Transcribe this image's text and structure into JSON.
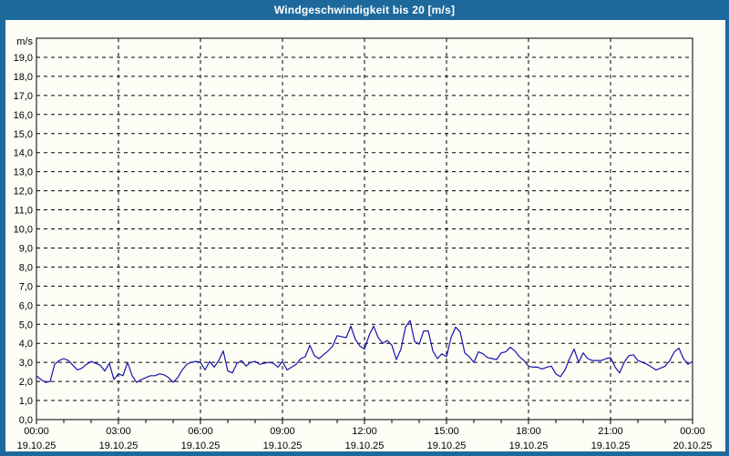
{
  "window": {
    "title": "Windgeschwindigkeit bis 20 [m/s]",
    "titlebar_color": "#1E699C",
    "background_color": "#FDFDF6"
  },
  "chart_data": {
    "type": "line",
    "title": "Windgeschwindigkeit bis 20 [m/s]",
    "ylabel": "m/s",
    "ylim": [
      0,
      20
    ],
    "ytick_min": 0,
    "ytick_max": 19,
    "ytick_step": 1,
    "decimal_separator": ",",
    "grid": {
      "style": "dashed",
      "color": "#000000",
      "horizontal_every": 1,
      "vertical_every_hours": 3
    },
    "x_range_hours": [
      0,
      24
    ],
    "x_major_tick_hours": 3,
    "x_minor_tick_hours": 1,
    "xticks": [
      {
        "time": "00:00",
        "date": "19.10.25"
      },
      {
        "time": "03:00",
        "date": "19.10.25"
      },
      {
        "time": "06:00",
        "date": "19.10.25"
      },
      {
        "time": "09:00",
        "date": "19.10.25"
      },
      {
        "time": "12:00",
        "date": "19.10.25"
      },
      {
        "time": "15:00",
        "date": "19.10.25"
      },
      {
        "time": "18:00",
        "date": "19.10.25"
      },
      {
        "time": "21:00",
        "date": "19.10.25"
      },
      {
        "time": "00:00",
        "date": "20.10.25"
      }
    ],
    "series": [
      {
        "name": "Windgeschwindigkeit",
        "unit": "m/s",
        "color": "#1414AC",
        "interval_minutes": 10,
        "values": [
          2.3,
          2.1,
          1.95,
          2.0,
          2.9,
          3.1,
          3.2,
          3.1,
          2.85,
          2.6,
          2.7,
          2.9,
          3.05,
          2.95,
          2.85,
          2.55,
          2.95,
          2.1,
          2.4,
          2.3,
          3.0,
          2.3,
          1.95,
          2.1,
          2.2,
          2.3,
          2.3,
          2.4,
          2.35,
          2.2,
          1.95,
          2.2,
          2.6,
          2.9,
          3.0,
          3.05,
          3.0,
          2.6,
          3.05,
          2.75,
          3.1,
          3.6,
          2.55,
          2.45,
          2.95,
          3.1,
          2.8,
          3.0,
          3.05,
          2.9,
          2.95,
          3.0,
          2.95,
          2.75,
          3.05,
          2.6,
          2.75,
          2.9,
          3.2,
          3.3,
          3.9,
          3.35,
          3.2,
          3.4,
          3.6,
          3.85,
          4.4,
          4.35,
          4.3,
          4.9,
          4.2,
          3.85,
          3.7,
          4.4,
          4.9,
          4.3,
          4.0,
          4.15,
          3.9,
          3.15,
          3.7,
          4.85,
          5.2,
          4.1,
          3.95,
          4.65,
          4.65,
          3.6,
          3.2,
          3.45,
          3.3,
          4.3,
          4.85,
          4.6,
          3.5,
          3.3,
          3.0,
          3.55,
          3.45,
          3.25,
          3.2,
          3.15,
          3.5,
          3.55,
          3.8,
          3.6,
          3.3,
          3.1,
          2.8,
          2.75,
          2.75,
          2.65,
          2.75,
          2.8,
          2.4,
          2.25,
          2.6,
          3.2,
          3.7,
          3.0,
          3.5,
          3.2,
          3.1,
          3.1,
          3.1,
          3.2,
          3.25,
          2.75,
          2.45,
          3.0,
          3.35,
          3.4,
          3.1,
          3.0,
          2.9,
          2.75,
          2.6,
          2.7,
          2.8,
          3.1,
          3.55,
          3.75,
          3.2,
          2.9,
          3.05
        ]
      }
    ]
  }
}
